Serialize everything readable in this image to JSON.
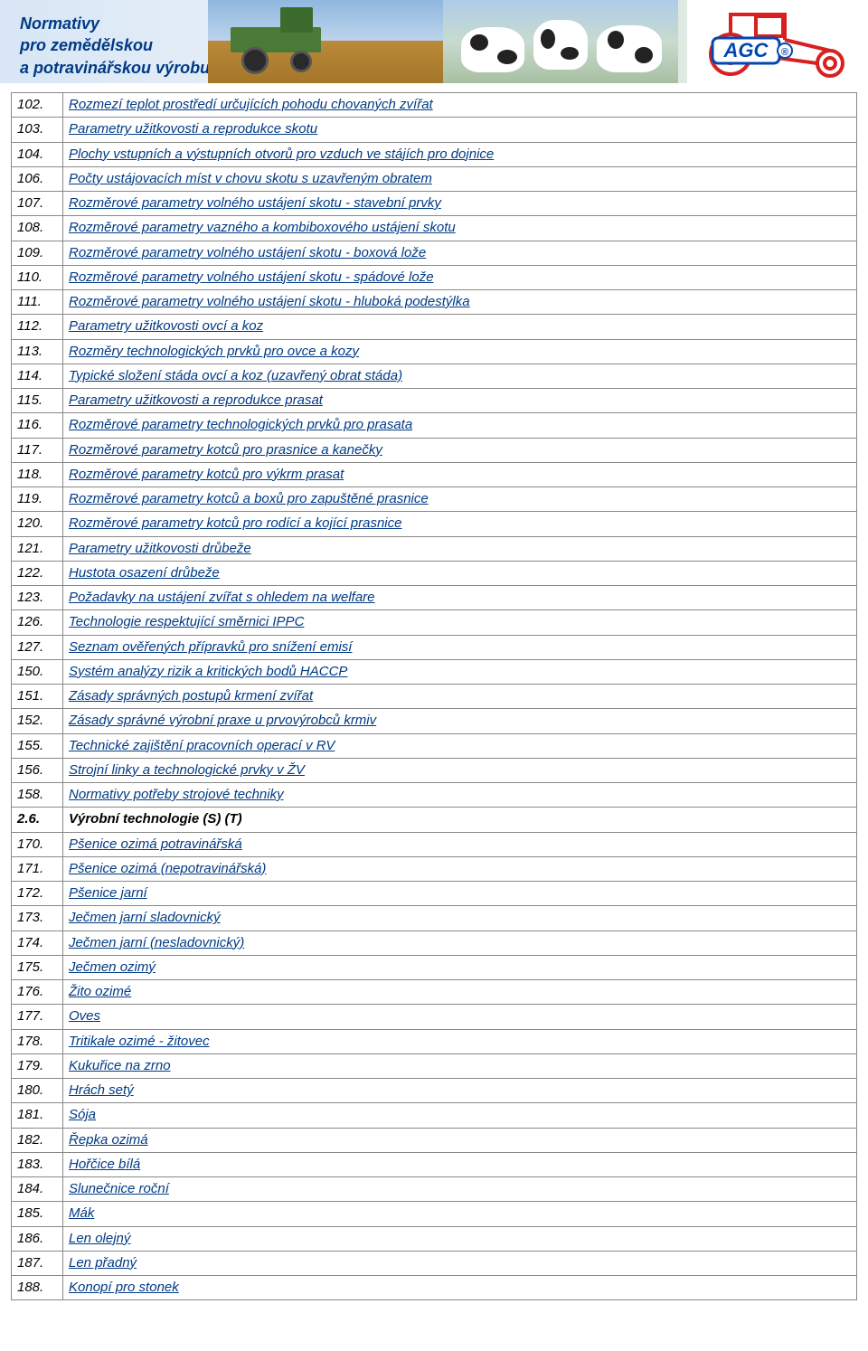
{
  "banner": {
    "title_line1": "Normativy",
    "title_line2": "pro zemědělskou",
    "title_line3": "a potravinářskou výrobu",
    "title_color": "#003a84",
    "logo_text": "AGC",
    "logo_color": "#0047b3",
    "tractor_color": "#d92020"
  },
  "table": {
    "border_color": "#888888",
    "link_color": "#003a84",
    "text_color": "#000000",
    "font_size": 15,
    "rows": [
      {
        "num": "102.",
        "text": "Rozmezí teplot prostředí určujících pohodu chovaných zvířat",
        "link": true
      },
      {
        "num": "103.",
        "text": "Parametry užitkovosti a reprodukce skotu",
        "link": true
      },
      {
        "num": "104.",
        "text": "Plochy vstupních a výstupních otvorů pro vzduch ve stájích pro dojnice",
        "link": true
      },
      {
        "num": "106.",
        "text": "Počty ustájovacích míst v chovu skotu s uzavřeným obratem",
        "link": true
      },
      {
        "num": "107.",
        "text": "Rozměrové parametry volného ustájení skotu - stavební prvky",
        "link": true
      },
      {
        "num": "108.",
        "text": "Rozměrové parametry vazného a kombiboxového ustájení skotu",
        "link": true
      },
      {
        "num": "109.",
        "text": "Rozměrové parametry volného ustájení skotu - boxová lože",
        "link": true
      },
      {
        "num": "110.",
        "text": "Rozměrové parametry volného ustájení skotu -  spádové lože",
        "link": true
      },
      {
        "num": "111.",
        "text": "Rozměrové parametry volného ustájení skotu - hluboká podestýlka",
        "link": true
      },
      {
        "num": "112.",
        "text": "Parametry užitkovosti ovcí a koz",
        "link": true
      },
      {
        "num": "113.",
        "text": "Rozměry technologických prvků pro ovce a kozy",
        "link": true
      },
      {
        "num": "114.",
        "text": "Typické složení stáda ovcí a koz (uzavřený obrat stáda)",
        "link": true
      },
      {
        "num": "115.",
        "text": "Parametry užitkovosti a reprodukce prasat",
        "link": true
      },
      {
        "num": "116.",
        "text": "Rozměrové parametry technologických prvků pro prasata",
        "link": true
      },
      {
        "num": "117.",
        "text": "Rozměrové parametry kotců pro prasnice a kanečky",
        "link": true
      },
      {
        "num": "118.",
        "text": "Rozměrové parametry kotců pro výkrm prasat",
        "link": true
      },
      {
        "num": "119.",
        "text": "Rozměrové parametry kotců a boxů pro zapuštěné prasnice",
        "link": true
      },
      {
        "num": "120.",
        "text": "Rozměrové parametry kotců pro rodící a kojící prasnice",
        "link": true
      },
      {
        "num": "121.",
        "text": "Parametry užitkovosti drůbeže",
        "link": true
      },
      {
        "num": "122.",
        "text": "Hustota osazení drůbeže",
        "link": true
      },
      {
        "num": "123.",
        "text": "Požadavky na ustájení zvířat s ohledem na welfare",
        "link": true
      },
      {
        "num": "126.",
        "text": "Technologie respektující směrnici IPPC",
        "link": true
      },
      {
        "num": "127.",
        "text": "Seznam ověřených přípravků pro snížení emisí",
        "link": true
      },
      {
        "num": "150.",
        "text": "Systém analýzy rizik a kritických bodů HACCP",
        "link": true
      },
      {
        "num": "151.",
        "text": "Zásady správných postupů krmení zvířat",
        "link": true
      },
      {
        "num": "152.",
        "text": "Zásady správné výrobní praxe u prvovýrobců krmiv",
        "link": true
      },
      {
        "num": "155.",
        "text": "Technické zajištění pracovních operací v RV",
        "link": true
      },
      {
        "num": "156.",
        "text": "Strojní linky a technologické prvky v ŽV",
        "link": true
      },
      {
        "num": "158.",
        "text": "Normativy potřeby strojové techniky",
        "link": true
      },
      {
        "num": "2.6.",
        "text": "Výrobní technologie (S) (T)",
        "link": false,
        "bold": true
      },
      {
        "num": "170.",
        "text": "Pšenice ozimá potravinářská",
        "link": true
      },
      {
        "num": "171.",
        "text": "Pšenice ozimá (nepotravinářská)",
        "link": true
      },
      {
        "num": "172.",
        "text": "Pšenice jarní",
        "link": true
      },
      {
        "num": "173.",
        "text": "Ječmen jarní sladovnický",
        "link": true
      },
      {
        "num": "174.",
        "text": "Ječmen jarní (nesladovnický)",
        "link": true
      },
      {
        "num": "175.",
        "text": "Ječmen ozimý",
        "link": true
      },
      {
        "num": "176.",
        "text": "Žito ozimé",
        "link": true
      },
      {
        "num": "177.",
        "text": "Oves",
        "link": true
      },
      {
        "num": "178.",
        "text": "Tritikale ozimé - žitovec",
        "link": true
      },
      {
        "num": "179.",
        "text": "Kukuřice na zrno",
        "link": true
      },
      {
        "num": "180.",
        "text": "Hrách setý",
        "link": true
      },
      {
        "num": "181.",
        "text": "Sója",
        "link": true
      },
      {
        "num": "182.",
        "text": "Řepka ozimá",
        "link": true
      },
      {
        "num": "183.",
        "text": "Hořčice bílá",
        "link": true
      },
      {
        "num": "184.",
        "text": "Slunečnice roční",
        "link": true
      },
      {
        "num": "185.",
        "text": "Mák",
        "link": true
      },
      {
        "num": "186.",
        "text": "Len olejný",
        "link": true
      },
      {
        "num": "187.",
        "text": "Len přadný",
        "link": true
      },
      {
        "num": "188.",
        "text": "Konopí pro stonek",
        "link": true
      }
    ]
  }
}
